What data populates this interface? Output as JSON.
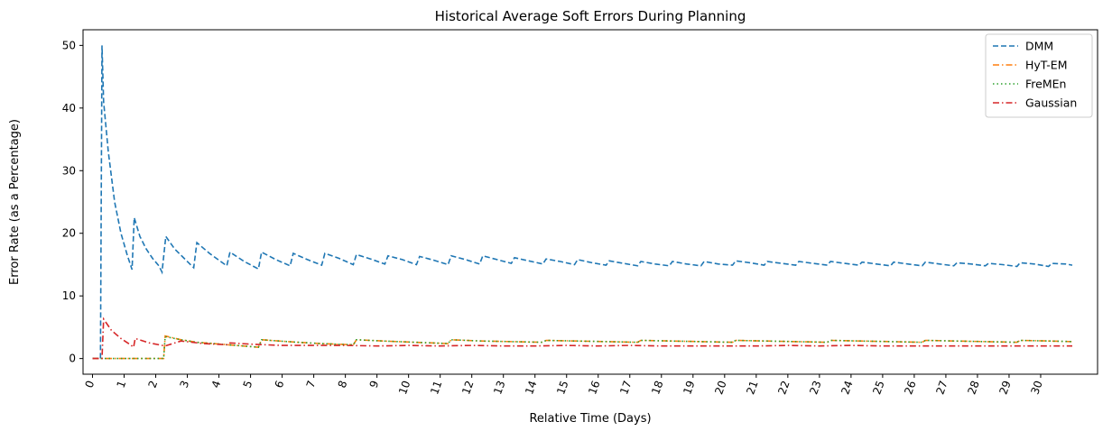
{
  "chart_data": {
    "type": "line",
    "title": "Historical Average Soft Errors During Planning",
    "xlabel": "Relative Time (Days)",
    "ylabel": "Error Rate (as a Percentage)",
    "xlim": [
      -0.3,
      31.8
    ],
    "ylim": [
      -2.5,
      52.5
    ],
    "xticks": [
      0,
      1,
      2,
      3,
      4,
      5,
      6,
      7,
      8,
      9,
      10,
      11,
      12,
      13,
      14,
      15,
      16,
      17,
      18,
      19,
      20,
      21,
      22,
      23,
      24,
      25,
      26,
      27,
      28,
      29,
      30
    ],
    "xtick_rotation": 70,
    "yticks": [
      0,
      10,
      20,
      30,
      40,
      50
    ],
    "legend_position": "upper right",
    "series": [
      {
        "name": "DMM",
        "color": "#1f77b4",
        "dash": "dashed",
        "points": [
          [
            0,
            0
          ],
          [
            0.25,
            0
          ],
          [
            0.3,
            50
          ],
          [
            0.35,
            41
          ],
          [
            0.5,
            33
          ],
          [
            0.7,
            25
          ],
          [
            0.9,
            20
          ],
          [
            1.1,
            16.5
          ],
          [
            1.25,
            14.2
          ],
          [
            1.32,
            22.5
          ],
          [
            1.5,
            19.5
          ],
          [
            1.7,
            17.5
          ],
          [
            1.9,
            16
          ],
          [
            2.1,
            14.8
          ],
          [
            2.2,
            13.8
          ],
          [
            2.32,
            19.5
          ],
          [
            2.6,
            17.5
          ],
          [
            2.9,
            16
          ],
          [
            3.2,
            14.5
          ],
          [
            3.3,
            18.5
          ],
          [
            3.7,
            16.8
          ],
          [
            4.0,
            15.7
          ],
          [
            4.25,
            14.8
          ],
          [
            4.35,
            17
          ],
          [
            4.8,
            15.5
          ],
          [
            5.25,
            14.3
          ],
          [
            5.35,
            17
          ],
          [
            5.8,
            15.8
          ],
          [
            6.25,
            14.8
          ],
          [
            6.35,
            16.8
          ],
          [
            6.8,
            15.8
          ],
          [
            7.25,
            14.9
          ],
          [
            7.35,
            16.8
          ],
          [
            7.8,
            16
          ],
          [
            8.25,
            15
          ],
          [
            8.35,
            16.6
          ],
          [
            8.8,
            15.9
          ],
          [
            9.25,
            15.1
          ],
          [
            9.35,
            16.4
          ],
          [
            9.8,
            15.8
          ],
          [
            10.25,
            15
          ],
          [
            10.35,
            16.3
          ],
          [
            10.8,
            15.7
          ],
          [
            11.25,
            15
          ],
          [
            11.35,
            16.4
          ],
          [
            11.8,
            15.8
          ],
          [
            12.25,
            15.1
          ],
          [
            12.35,
            16.4
          ],
          [
            12.8,
            15.8
          ],
          [
            13.25,
            15.2
          ],
          [
            13.35,
            16.1
          ],
          [
            13.8,
            15.6
          ],
          [
            14.25,
            15.1
          ],
          [
            14.35,
            15.9
          ],
          [
            14.8,
            15.5
          ],
          [
            15.25,
            15
          ],
          [
            15.35,
            15.8
          ],
          [
            15.8,
            15.3
          ],
          [
            16.25,
            14.9
          ],
          [
            16.35,
            15.6
          ],
          [
            16.8,
            15.2
          ],
          [
            17.25,
            14.8
          ],
          [
            17.35,
            15.5
          ],
          [
            17.8,
            15.1
          ],
          [
            18.25,
            14.8
          ],
          [
            18.35,
            15.5
          ],
          [
            18.8,
            15.1
          ],
          [
            19.25,
            14.8
          ],
          [
            19.35,
            15.5
          ],
          [
            19.8,
            15.1
          ],
          [
            20.25,
            14.9
          ],
          [
            20.35,
            15.6
          ],
          [
            20.8,
            15.3
          ],
          [
            21.25,
            14.9
          ],
          [
            21.35,
            15.5
          ],
          [
            21.8,
            15.2
          ],
          [
            22.25,
            14.9
          ],
          [
            22.35,
            15.5
          ],
          [
            22.8,
            15.2
          ],
          [
            23.25,
            14.9
          ],
          [
            23.35,
            15.5
          ],
          [
            23.8,
            15.2
          ],
          [
            24.25,
            14.9
          ],
          [
            24.35,
            15.4
          ],
          [
            24.8,
            15.1
          ],
          [
            25.25,
            14.8
          ],
          [
            25.35,
            15.4
          ],
          [
            25.8,
            15.1
          ],
          [
            26.25,
            14.8
          ],
          [
            26.35,
            15.4
          ],
          [
            26.8,
            15.1
          ],
          [
            27.25,
            14.8
          ],
          [
            27.35,
            15.3
          ],
          [
            27.8,
            15.1
          ],
          [
            28.25,
            14.8
          ],
          [
            28.35,
            15.2
          ],
          [
            28.8,
            15
          ],
          [
            29.25,
            14.7
          ],
          [
            29.35,
            15.3
          ],
          [
            29.8,
            15.1
          ],
          [
            30.25,
            14.7
          ],
          [
            30.35,
            15.2
          ],
          [
            30.8,
            15.1
          ],
          [
            31.0,
            14.9
          ]
        ]
      },
      {
        "name": "HyT-EM",
        "color": "#ff7f0e",
        "dash": "dashdot",
        "points": [
          [
            0,
            0
          ],
          [
            2.25,
            0
          ],
          [
            2.3,
            3.6
          ],
          [
            2.8,
            3
          ],
          [
            3.3,
            2.6
          ],
          [
            4.3,
            2.2
          ],
          [
            5.25,
            1.8
          ],
          [
            5.35,
            3
          ],
          [
            5.9,
            2.8
          ],
          [
            6.5,
            2.6
          ],
          [
            7.2,
            2.4
          ],
          [
            8.25,
            2.2
          ],
          [
            8.35,
            3
          ],
          [
            9.2,
            2.8
          ],
          [
            10.2,
            2.6
          ],
          [
            11.25,
            2.4
          ],
          [
            11.35,
            3
          ],
          [
            12.3,
            2.8
          ],
          [
            13.3,
            2.7
          ],
          [
            14.25,
            2.6
          ],
          [
            14.35,
            2.9
          ],
          [
            15.3,
            2.8
          ],
          [
            16.3,
            2.7
          ],
          [
            17.25,
            2.6
          ],
          [
            17.35,
            2.9
          ],
          [
            18.3,
            2.8
          ],
          [
            19.3,
            2.7
          ],
          [
            20.25,
            2.6
          ],
          [
            20.35,
            2.9
          ],
          [
            21.3,
            2.8
          ],
          [
            22.3,
            2.7
          ],
          [
            23.25,
            2.6
          ],
          [
            23.35,
            2.9
          ],
          [
            24.3,
            2.8
          ],
          [
            25.3,
            2.7
          ],
          [
            26.25,
            2.6
          ],
          [
            26.35,
            2.9
          ],
          [
            27.3,
            2.8
          ],
          [
            28.3,
            2.7
          ],
          [
            29.25,
            2.6
          ],
          [
            29.35,
            2.9
          ],
          [
            30.3,
            2.8
          ],
          [
            31.0,
            2.7
          ]
        ]
      },
      {
        "name": "FreMEn",
        "color": "#2ca02c",
        "dash": "dotted",
        "points": [
          [
            0,
            0
          ],
          [
            2.25,
            0
          ],
          [
            2.3,
            3.5
          ],
          [
            2.8,
            3
          ],
          [
            3.3,
            2.6
          ],
          [
            4.3,
            2.2
          ],
          [
            5.25,
            1.8
          ],
          [
            5.35,
            3
          ],
          [
            5.9,
            2.8
          ],
          [
            6.5,
            2.6
          ],
          [
            7.2,
            2.4
          ],
          [
            8.25,
            2.2
          ],
          [
            8.35,
            3
          ],
          [
            9.2,
            2.8
          ],
          [
            10.2,
            2.6
          ],
          [
            11.25,
            2.4
          ],
          [
            11.35,
            3
          ],
          [
            12.3,
            2.8
          ],
          [
            13.3,
            2.7
          ],
          [
            14.25,
            2.6
          ],
          [
            14.35,
            2.9
          ],
          [
            15.3,
            2.8
          ],
          [
            16.3,
            2.7
          ],
          [
            17.25,
            2.6
          ],
          [
            17.35,
            2.9
          ],
          [
            18.3,
            2.8
          ],
          [
            19.3,
            2.7
          ],
          [
            20.25,
            2.6
          ],
          [
            20.35,
            2.9
          ],
          [
            21.3,
            2.8
          ],
          [
            22.3,
            2.7
          ],
          [
            23.25,
            2.6
          ],
          [
            23.35,
            2.9
          ],
          [
            24.3,
            2.8
          ],
          [
            25.3,
            2.7
          ],
          [
            26.25,
            2.6
          ],
          [
            26.35,
            2.9
          ],
          [
            27.3,
            2.8
          ],
          [
            28.3,
            2.7
          ],
          [
            29.25,
            2.6
          ],
          [
            29.35,
            2.9
          ],
          [
            30.3,
            2.8
          ],
          [
            31.0,
            2.7
          ]
        ]
      },
      {
        "name": "Gaussian",
        "color": "#d62728",
        "dash": "dashdot",
        "points": [
          [
            0,
            0
          ],
          [
            0.3,
            0
          ],
          [
            0.35,
            6.3
          ],
          [
            0.6,
            4.5
          ],
          [
            0.9,
            3.2
          ],
          [
            1.2,
            2.2
          ],
          [
            1.3,
            1.8
          ],
          [
            1.35,
            3.2
          ],
          [
            1.8,
            2.5
          ],
          [
            2.3,
            2
          ],
          [
            2.8,
            2.8
          ],
          [
            3.5,
            2.4
          ],
          [
            4.3,
            2.2
          ],
          [
            4.35,
            2.5
          ],
          [
            5.0,
            2.3
          ],
          [
            6.0,
            2.1
          ],
          [
            7.0,
            2.1
          ],
          [
            8.0,
            2.1
          ],
          [
            9.0,
            2
          ],
          [
            10.0,
            2.1
          ],
          [
            11.0,
            2
          ],
          [
            12.0,
            2.1
          ],
          [
            13.0,
            2
          ],
          [
            14.0,
            2
          ],
          [
            15.0,
            2.1
          ],
          [
            16.0,
            2
          ],
          [
            17.0,
            2.1
          ],
          [
            18.0,
            2
          ],
          [
            19.0,
            2
          ],
          [
            20.0,
            2
          ],
          [
            21.0,
            2
          ],
          [
            22.0,
            2.1
          ],
          [
            23.0,
            2
          ],
          [
            24.0,
            2.1
          ],
          [
            25.0,
            2
          ],
          [
            26.0,
            2
          ],
          [
            27.0,
            2
          ],
          [
            28.0,
            2
          ],
          [
            29.0,
            2
          ],
          [
            30.0,
            2
          ],
          [
            31.0,
            2
          ]
        ]
      }
    ]
  }
}
